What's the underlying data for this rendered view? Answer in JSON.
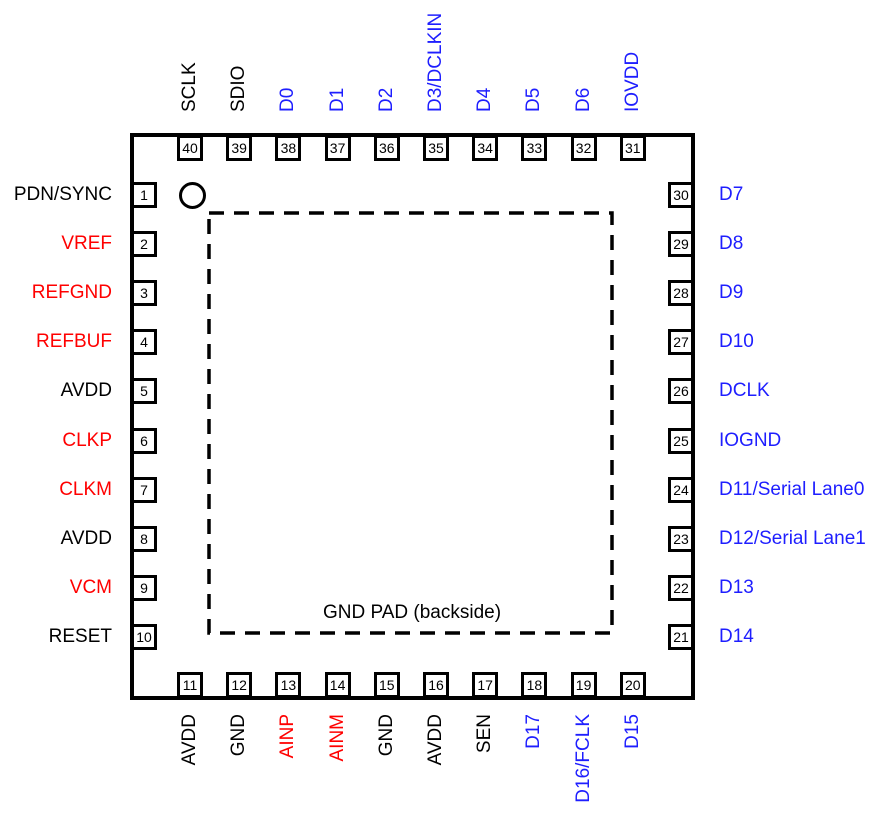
{
  "diagram": {
    "gnd_pad_label": "GND PAD (backside)",
    "colors": {
      "black": "#000000",
      "red": "#FF0000",
      "blue": "#1E1EFF"
    },
    "pins": {
      "top": [
        {
          "num": "40",
          "label": "SCLK",
          "color": "black"
        },
        {
          "num": "39",
          "label": "SDIO",
          "color": "black"
        },
        {
          "num": "38",
          "label": "D0",
          "color": "blue"
        },
        {
          "num": "37",
          "label": "D1",
          "color": "blue"
        },
        {
          "num": "36",
          "label": "D2",
          "color": "blue"
        },
        {
          "num": "35",
          "label": "D3/DCLKIN",
          "color": "blue"
        },
        {
          "num": "34",
          "label": "D4",
          "color": "blue"
        },
        {
          "num": "33",
          "label": "D5",
          "color": "blue"
        },
        {
          "num": "32",
          "label": "D6",
          "color": "blue"
        },
        {
          "num": "31",
          "label": "IOVDD",
          "color": "blue"
        }
      ],
      "left": [
        {
          "num": "1",
          "label": "PDN/SYNC",
          "color": "black"
        },
        {
          "num": "2",
          "label": "VREF",
          "color": "red"
        },
        {
          "num": "3",
          "label": "REFGND",
          "color": "red"
        },
        {
          "num": "4",
          "label": "REFBUF",
          "color": "red"
        },
        {
          "num": "5",
          "label": "AVDD",
          "color": "black"
        },
        {
          "num": "6",
          "label": "CLKP",
          "color": "red"
        },
        {
          "num": "7",
          "label": "CLKM",
          "color": "red"
        },
        {
          "num": "8",
          "label": "AVDD",
          "color": "black"
        },
        {
          "num": "9",
          "label": "VCM",
          "color": "red"
        },
        {
          "num": "10",
          "label": "RESET",
          "color": "black"
        }
      ],
      "right": [
        {
          "num": "30",
          "label": "D7",
          "color": "blue"
        },
        {
          "num": "29",
          "label": "D8",
          "color": "blue"
        },
        {
          "num": "28",
          "label": "D9",
          "color": "blue"
        },
        {
          "num": "27",
          "label": "D10",
          "color": "blue"
        },
        {
          "num": "26",
          "label": "DCLK",
          "color": "blue"
        },
        {
          "num": "25",
          "label": "IOGND",
          "color": "blue"
        },
        {
          "num": "24",
          "label": "D11/Serial Lane0",
          "color": "blue"
        },
        {
          "num": "23",
          "label": "D12/Serial Lane1",
          "color": "blue"
        },
        {
          "num": "22",
          "label": "D13",
          "color": "blue"
        },
        {
          "num": "21",
          "label": "D14",
          "color": "blue"
        }
      ],
      "bottom": [
        {
          "num": "11",
          "label": "AVDD",
          "color": "black"
        },
        {
          "num": "12",
          "label": "GND",
          "color": "black"
        },
        {
          "num": "13",
          "label": "AINP",
          "color": "red"
        },
        {
          "num": "14",
          "label": "AINM",
          "color": "red"
        },
        {
          "num": "15",
          "label": "GND",
          "color": "black"
        },
        {
          "num": "16",
          "label": "AVDD",
          "color": "black"
        },
        {
          "num": "17",
          "label": "SEN",
          "color": "black"
        },
        {
          "num": "18",
          "label": "D17",
          "color": "blue"
        },
        {
          "num": "19",
          "label": "D16/FCLK",
          "color": "blue"
        },
        {
          "num": "20",
          "label": "D15",
          "color": "blue"
        }
      ]
    }
  }
}
